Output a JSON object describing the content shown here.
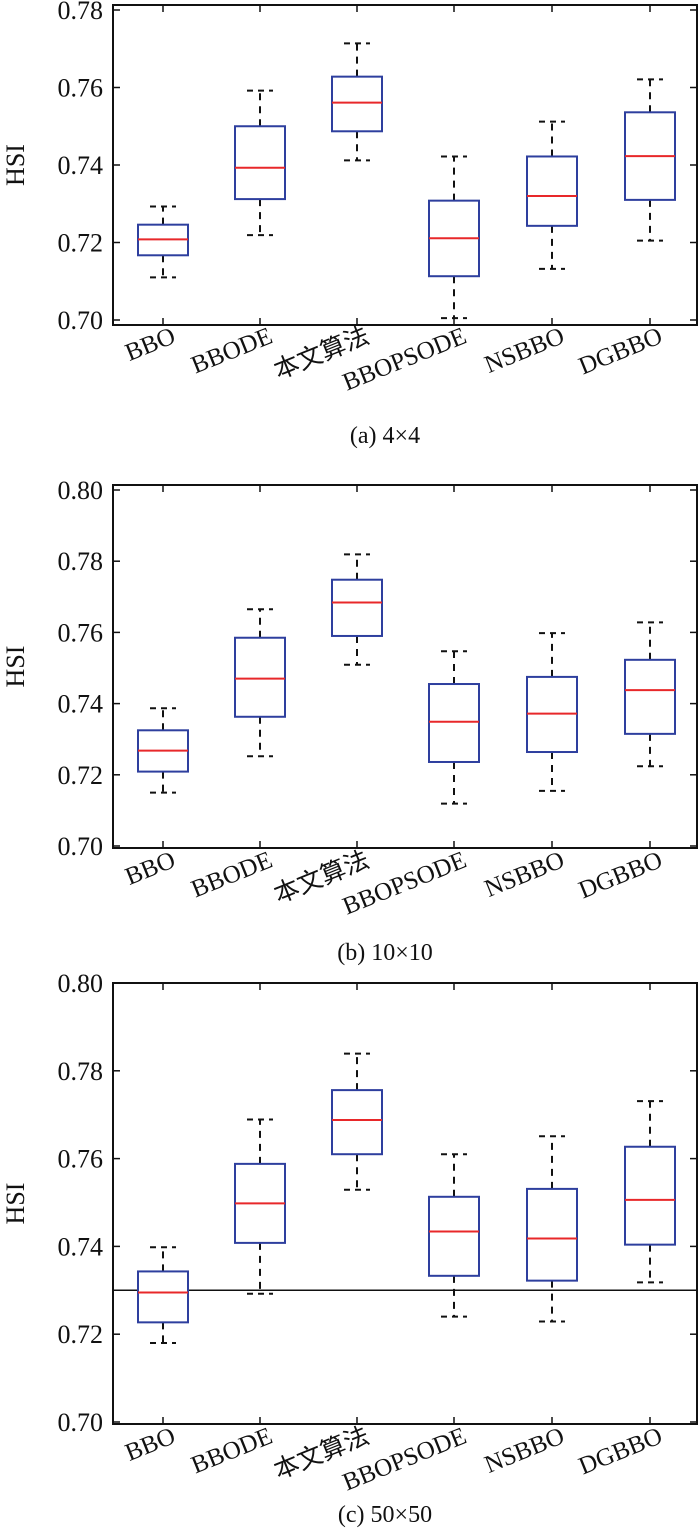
{
  "chart_data": [
    {
      "type": "box",
      "caption": "(a) 4×4",
      "ylabel": "HSI",
      "ylim": [
        0.7,
        0.78
      ],
      "yticks": [
        "0.70",
        "0.72",
        "0.74",
        "0.76",
        "0.78"
      ],
      "categories": [
        "BBO",
        "BBODE",
        "本文算法",
        "BBOPSODE",
        "NSBBO",
        "DGBBO"
      ],
      "boxes": [
        {
          "whisker_low": 0.711,
          "q1": 0.7167,
          "median": 0.7208,
          "q3": 0.7246,
          "whisker_high": 0.7293
        },
        {
          "whisker_low": 0.7219,
          "q1": 0.7312,
          "median": 0.7393,
          "q3": 0.75,
          "whisker_high": 0.7592
        },
        {
          "whisker_low": 0.7412,
          "q1": 0.7487,
          "median": 0.7561,
          "q3": 0.7628,
          "whisker_high": 0.7714
        },
        {
          "whisker_low": 0.7005,
          "q1": 0.7113,
          "median": 0.7211,
          "q3": 0.7308,
          "whisker_high": 0.7422
        },
        {
          "whisker_low": 0.7132,
          "q1": 0.7243,
          "median": 0.732,
          "q3": 0.7422,
          "whisker_high": 0.7512
        },
        {
          "whisker_low": 0.7205,
          "q1": 0.731,
          "median": 0.7423,
          "q3": 0.7536,
          "whisker_high": 0.7621
        }
      ]
    },
    {
      "type": "box",
      "caption": "(b) 10×10",
      "ylabel": "HSI",
      "ylim": [
        0.7,
        0.8
      ],
      "yticks": [
        "0.70",
        "0.72",
        "0.74",
        "0.76",
        "0.78",
        "0.80"
      ],
      "categories": [
        "BBO",
        "BBODE",
        "本文算法",
        "BBOPSODE",
        "NSBBO",
        "DGBBO"
      ],
      "boxes": [
        {
          "whisker_low": 0.715,
          "q1": 0.7209,
          "median": 0.7268,
          "q3": 0.7325,
          "whisker_high": 0.7387
        },
        {
          "whisker_low": 0.7252,
          "q1": 0.7363,
          "median": 0.747,
          "q3": 0.7585,
          "whisker_high": 0.7665
        },
        {
          "whisker_low": 0.7509,
          "q1": 0.759,
          "median": 0.7684,
          "q3": 0.7748,
          "whisker_high": 0.7819
        },
        {
          "whisker_low": 0.7119,
          "q1": 0.7236,
          "median": 0.7349,
          "q3": 0.7455,
          "whisker_high": 0.7547
        },
        {
          "whisker_low": 0.7155,
          "q1": 0.7264,
          "median": 0.7372,
          "q3": 0.7475,
          "whisker_high": 0.7598
        },
        {
          "whisker_low": 0.7224,
          "q1": 0.7315,
          "median": 0.7438,
          "q3": 0.7523,
          "whisker_high": 0.7628
        }
      ]
    },
    {
      "type": "box",
      "caption": "(c) 50×50",
      "ylabel": "HSI",
      "ylim": [
        0.7,
        0.8
      ],
      "yticks": [
        "0.70",
        "0.72",
        "0.74",
        "0.76",
        "0.78",
        "0.80"
      ],
      "categories": [
        "BBO",
        "BBODE",
        "本文算法",
        "BBOPSODE",
        "NSBBO",
        "DGBBO"
      ],
      "reference_line": 0.73,
      "boxes": [
        {
          "whisker_low": 0.718,
          "q1": 0.7227,
          "median": 0.7295,
          "q3": 0.7343,
          "whisker_high": 0.7398
        },
        {
          "whisker_low": 0.7292,
          "q1": 0.7408,
          "median": 0.7498,
          "q3": 0.7588,
          "whisker_high": 0.7689
        },
        {
          "whisker_low": 0.7529,
          "q1": 0.761,
          "median": 0.7688,
          "q3": 0.7756,
          "whisker_high": 0.7839
        },
        {
          "whisker_low": 0.724,
          "q1": 0.7333,
          "median": 0.7434,
          "q3": 0.7513,
          "whisker_high": 0.761
        },
        {
          "whisker_low": 0.7229,
          "q1": 0.7322,
          "median": 0.7418,
          "q3": 0.7531,
          "whisker_high": 0.7651
        },
        {
          "whisker_low": 0.7318,
          "q1": 0.7404,
          "median": 0.7506,
          "q3": 0.7627,
          "whisker_high": 0.7731
        }
      ]
    }
  ],
  "colors": {
    "box": "#2e3f9e",
    "median": "#e8282a",
    "whisker": "#111111",
    "axis": "#111111"
  }
}
